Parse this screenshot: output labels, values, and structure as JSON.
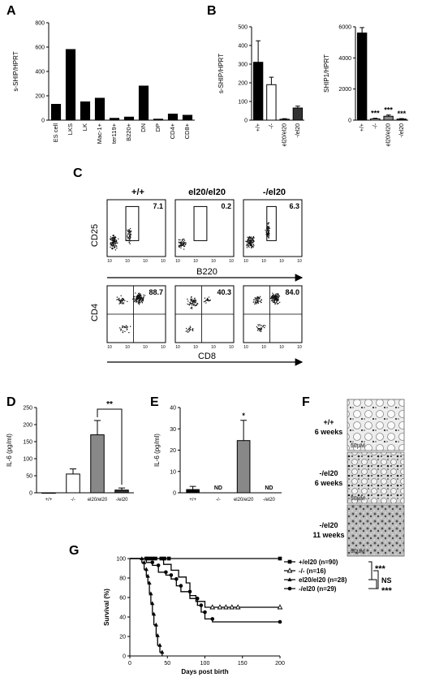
{
  "panels": {
    "A": "A",
    "B": "B",
    "C": "C",
    "D": "D",
    "E": "E",
    "F": "F",
    "G": "G"
  },
  "chart_data": [
    {
      "id": "A",
      "type": "bar",
      "ylabel": "s-SHIP/HPRT",
      "ylim": [
        0,
        800
      ],
      "yticks": [
        0,
        200,
        400,
        600,
        800
      ],
      "categories": [
        "ES cell",
        "LKS",
        "LK",
        "Mac-1+",
        "ter119+",
        "B220+",
        "DN",
        "DP",
        "CD4+",
        "CD8+"
      ],
      "values": [
        130,
        580,
        150,
        180,
        15,
        25,
        280,
        8,
        50,
        40
      ]
    },
    {
      "id": "B1",
      "type": "bar",
      "ylabel": "s-SHIP/HPRT",
      "ylim": [
        0,
        500
      ],
      "yticks": [
        0,
        100,
        200,
        300,
        400,
        500
      ],
      "categories": [
        "+/+",
        "-/-",
        "el20/el20",
        "-/el20"
      ],
      "values": [
        310,
        190,
        5,
        65
      ],
      "errors": [
        115,
        40,
        3,
        10
      ],
      "fills": [
        "#000000",
        "#ffffff",
        "#888888",
        "#333333"
      ]
    },
    {
      "id": "B2",
      "type": "bar",
      "ylabel": "SHIP1/HPRT",
      "ylim": [
        0,
        6000
      ],
      "yticks": [
        0,
        2000,
        4000,
        6000
      ],
      "categories": [
        "+/+",
        "-/-",
        "el20/el20",
        "-/el20"
      ],
      "values": [
        5600,
        80,
        250,
        70
      ],
      "errors": [
        350,
        40,
        80,
        30
      ],
      "fills": [
        "#000000",
        "#ffffff",
        "#888888",
        "#333333"
      ],
      "annotations": [
        "",
        "***",
        "***",
        "***"
      ]
    },
    {
      "id": "D",
      "type": "bar",
      "ylabel": "IL-6 (pg/ml)",
      "ylim": [
        0,
        250
      ],
      "yticks": [
        0,
        50,
        100,
        150,
        200,
        250
      ],
      "categories": [
        "+/+",
        "-/-",
        "el20/el20",
        "-/el20"
      ],
      "values": [
        0,
        55,
        170,
        8
      ],
      "errors": [
        0,
        15,
        42,
        6
      ],
      "fills": [
        "#000000",
        "#ffffff",
        "#888888",
        "#333333"
      ],
      "bracket": {
        "from": 2,
        "to": 3,
        "label": "**"
      }
    },
    {
      "id": "E",
      "type": "bar",
      "ylabel": "IL-6 (pg/ml)",
      "ylim": [
        0,
        40
      ],
      "yticks": [
        0,
        10,
        20,
        30,
        40
      ],
      "categories": [
        "+/+",
        "-/-",
        "el20/el20",
        "-/el20"
      ],
      "values": [
        1.5,
        null,
        24.5,
        null
      ],
      "errors": [
        1.5,
        0,
        9.5,
        0
      ],
      "fills": [
        "#000000",
        "#ffffff",
        "#888888",
        "#333333"
      ],
      "annotations": [
        "",
        "ND",
        "*",
        "ND"
      ]
    },
    {
      "id": "G",
      "type": "line",
      "xlabel": "Days post birth",
      "ylabel": "Survival (%)",
      "xlim": [
        0,
        200
      ],
      "ylim": [
        0,
        100
      ],
      "xticks": [
        0,
        50,
        100,
        150,
        200
      ],
      "yticks": [
        0,
        20,
        40,
        60,
        80,
        100
      ],
      "series": [
        {
          "name": "+/el20 (n=90)",
          "marker": "square",
          "points": [
            [
              0,
              100
            ],
            [
              200,
              100
            ]
          ],
          "censor": [
            [
              22,
              100
            ],
            [
              26,
              100
            ],
            [
              30,
              100
            ],
            [
              34,
              100
            ],
            [
              42,
              100
            ],
            [
              46,
              100
            ],
            [
              52,
              100
            ],
            [
              200,
              100
            ]
          ]
        },
        {
          "name": "-/- (n=16)",
          "marker": "triangle-open",
          "points": [
            [
              0,
              100
            ],
            [
              45,
              100
            ],
            [
              45,
              94
            ],
            [
              55,
              94
            ],
            [
              55,
              88
            ],
            [
              65,
              88
            ],
            [
              65,
              81
            ],
            [
              75,
              81
            ],
            [
              75,
              75
            ],
            [
              80,
              75
            ],
            [
              80,
              62
            ],
            [
              88,
              62
            ],
            [
              88,
              56
            ],
            [
              100,
              56
            ],
            [
              100,
              50
            ],
            [
              200,
              50
            ]
          ],
          "censor": [
            [
              110,
              50
            ],
            [
              120,
              50
            ],
            [
              128,
              50
            ],
            [
              136,
              50
            ],
            [
              144,
              50
            ],
            [
              200,
              50
            ]
          ]
        },
        {
          "name": "el20/el20 (n=28)",
          "marker": "triangle",
          "points": [
            [
              0,
              100
            ],
            [
              16,
              100
            ],
            [
              16,
              96
            ],
            [
              19,
              96
            ],
            [
              19,
              89
            ],
            [
              22,
              89
            ],
            [
              22,
              82
            ],
            [
              24,
              82
            ],
            [
              24,
              75
            ],
            [
              26,
              75
            ],
            [
              26,
              64
            ],
            [
              28,
              64
            ],
            [
              28,
              54
            ],
            [
              30,
              54
            ],
            [
              30,
              43
            ],
            [
              32,
              43
            ],
            [
              32,
              32
            ],
            [
              35,
              32
            ],
            [
              35,
              21
            ],
            [
              37,
              21
            ],
            [
              37,
              11
            ],
            [
              40,
              11
            ],
            [
              40,
              4
            ],
            [
              43,
              4
            ],
            [
              43,
              0
            ]
          ],
          "censor": []
        },
        {
          "name": "-/el20 (n=29)",
          "marker": "circle",
          "points": [
            [
              0,
              100
            ],
            [
              22,
              100
            ],
            [
              22,
              96
            ],
            [
              30,
              96
            ],
            [
              30,
              93
            ],
            [
              38,
              93
            ],
            [
              38,
              86
            ],
            [
              48,
              86
            ],
            [
              48,
              83
            ],
            [
              55,
              83
            ],
            [
              55,
              79
            ],
            [
              62,
              79
            ],
            [
              62,
              72
            ],
            [
              68,
              72
            ],
            [
              68,
              66
            ],
            [
              80,
              66
            ],
            [
              80,
              59
            ],
            [
              90,
              59
            ],
            [
              90,
              52
            ],
            [
              95,
              52
            ],
            [
              95,
              45
            ],
            [
              100,
              45
            ],
            [
              100,
              38
            ],
            [
              110,
              38
            ],
            [
              110,
              35
            ],
            [
              200,
              35
            ]
          ],
          "censor": [
            [
              200,
              35
            ]
          ]
        }
      ],
      "significance": [
        "***",
        "NS",
        "***"
      ]
    }
  ],
  "flow": {
    "columns": [
      "+/+",
      "el20/el20",
      "-/el20"
    ],
    "row1": {
      "ylabel": "CD25",
      "xlabel": "B220",
      "values": [
        "7.1",
        "0.2",
        "6.3"
      ]
    },
    "row2": {
      "ylabel": "CD4",
      "xlabel": "CD8",
      "values": [
        "88.7",
        "40.3",
        "84.0"
      ]
    },
    "tick_label": "10"
  },
  "histology": {
    "rows": [
      {
        "genotype": "+/+",
        "age": "6 weeks",
        "scale": "50μM"
      },
      {
        "genotype": "-/el20",
        "age": "6 weeks",
        "scale": "50μM"
      },
      {
        "genotype": "-/el20",
        "age": "11 weeks",
        "scale": "50μM"
      }
    ]
  }
}
